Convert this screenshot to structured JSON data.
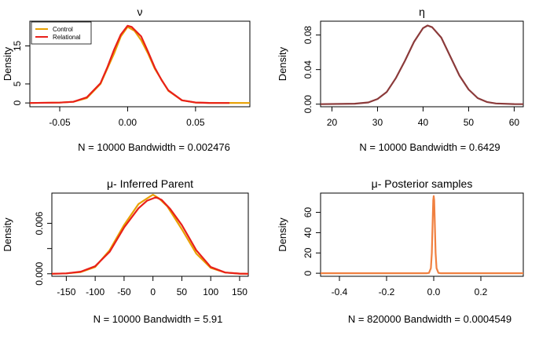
{
  "chart_data": [
    {
      "type": "line",
      "title": "ν",
      "xlabel": "N = 10000   Bandwidth = 0.002476",
      "ylabel": "Density",
      "xlim": [
        -0.072,
        0.09
      ],
      "ylim": [
        -1.0,
        21.5
      ],
      "x_ticks": [
        -0.05,
        0.0,
        0.05
      ],
      "x_tick_labels": [
        "-0.05",
        "0.00",
        "0.05"
      ],
      "y_ticks": [
        0,
        5,
        15
      ],
      "y_tick_labels": [
        "0",
        "5",
        "15"
      ],
      "legend": {
        "position": "top-left",
        "entries": [
          {
            "label": "Control",
            "color": "#e8a000"
          },
          {
            "label": "Relational",
            "color": "#e8201a"
          }
        ]
      },
      "series": [
        {
          "name": "Control",
          "color": "#e8a000",
          "points": [
            [
              -0.072,
              0
            ],
            [
              -0.05,
              0.1
            ],
            [
              -0.04,
              0.3
            ],
            [
              -0.03,
              1.3
            ],
            [
              -0.02,
              5.0
            ],
            [
              -0.015,
              9.0
            ],
            [
              -0.01,
              13.0
            ],
            [
              -0.005,
              17.5
            ],
            [
              0.0,
              20.0
            ],
            [
              0.005,
              19.0
            ],
            [
              0.01,
              16.5
            ],
            [
              0.015,
              13.0
            ],
            [
              0.02,
              9.0
            ],
            [
              0.03,
              3.2
            ],
            [
              0.04,
              0.7
            ],
            [
              0.05,
              0.1
            ],
            [
              0.06,
              0.02
            ],
            [
              0.09,
              0
            ]
          ]
        },
        {
          "name": "Relational",
          "color": "#e8201a",
          "points": [
            [
              -0.072,
              0
            ],
            [
              -0.05,
              0.1
            ],
            [
              -0.04,
              0.3
            ],
            [
              -0.03,
              1.5
            ],
            [
              -0.02,
              5.2
            ],
            [
              -0.015,
              9.3
            ],
            [
              -0.01,
              14.0
            ],
            [
              -0.005,
              18.0
            ],
            [
              0.0,
              20.3
            ],
            [
              0.003,
              20.0
            ],
            [
              0.01,
              17.5
            ],
            [
              0.015,
              13.5
            ],
            [
              0.02,
              9.3
            ],
            [
              0.025,
              6.0
            ],
            [
              0.03,
              3.3
            ],
            [
              0.04,
              0.7
            ],
            [
              0.05,
              0.12
            ],
            [
              0.06,
              0.02
            ],
            [
              0.075,
              0
            ]
          ]
        }
      ]
    },
    {
      "type": "line",
      "title": "η",
      "xlabel": "N = 10000   Bandwidth = 0.6429",
      "ylabel": "Density",
      "xlim": [
        17.5,
        62
      ],
      "ylim": [
        -0.003,
        0.096
      ],
      "x_ticks": [
        20,
        30,
        40,
        50,
        60
      ],
      "x_tick_labels": [
        "20",
        "30",
        "40",
        "50",
        "60"
      ],
      "y_ticks": [
        0.0,
        0.04,
        0.08
      ],
      "y_tick_labels": [
        "0.00",
        "0.04",
        "0.08"
      ],
      "series": [
        {
          "name": "",
          "color": "#8b3a3a",
          "points": [
            [
              17.5,
              0
            ],
            [
              25,
              0.0005
            ],
            [
              28,
              0.002
            ],
            [
              30,
              0.006
            ],
            [
              32,
              0.014
            ],
            [
              34,
              0.03
            ],
            [
              36,
              0.05
            ],
            [
              38,
              0.072
            ],
            [
              40,
              0.088
            ],
            [
              41,
              0.091
            ],
            [
              42,
              0.089
            ],
            [
              44,
              0.077
            ],
            [
              46,
              0.055
            ],
            [
              48,
              0.033
            ],
            [
              50,
              0.017
            ],
            [
              52,
              0.007
            ],
            [
              54,
              0.0025
            ],
            [
              56,
              0.0008
            ],
            [
              60,
              0.0001
            ],
            [
              62,
              0
            ]
          ]
        }
      ]
    },
    {
      "type": "line",
      "title": "μ- Inferred Parent",
      "xlabel": "N = 10000   Bandwidth = 5.91",
      "ylabel": "Density",
      "xlim": [
        -175,
        165
      ],
      "ylim": [
        -0.0003,
        0.0096
      ],
      "x_ticks": [
        -150,
        -100,
        -50,
        0,
        50,
        100,
        150
      ],
      "x_tick_labels": [
        "-150",
        "-100",
        "-50",
        "0",
        "50",
        "100",
        "150"
      ],
      "y_ticks": [
        0.0,
        0.003,
        0.006
      ],
      "y_tick_labels": [
        "0.000",
        "",
        "0.006"
      ],
      "series": [
        {
          "name": "Control",
          "color": "#e8a000",
          "points": [
            [
              -175,
              0
            ],
            [
              -150,
              5e-05
            ],
            [
              -125,
              0.0002
            ],
            [
              -100,
              0.0008
            ],
            [
              -75,
              0.0028
            ],
            [
              -50,
              0.0058
            ],
            [
              -25,
              0.0083
            ],
            [
              -5,
              0.0092
            ],
            [
              0,
              0.0094
            ],
            [
              10,
              0.009
            ],
            [
              25,
              0.008
            ],
            [
              50,
              0.0053
            ],
            [
              75,
              0.0024
            ],
            [
              100,
              0.0007
            ],
            [
              125,
              0.00015
            ],
            [
              150,
              2e-05
            ],
            [
              165,
              0
            ]
          ]
        },
        {
          "name": "Relational",
          "color": "#e8201a",
          "points": [
            [
              -175,
              0
            ],
            [
              -150,
              5e-05
            ],
            [
              -125,
              0.00025
            ],
            [
              -100,
              0.0009
            ],
            [
              -75,
              0.0026
            ],
            [
              -50,
              0.0055
            ],
            [
              -25,
              0.0078
            ],
            [
              -10,
              0.0087
            ],
            [
              5,
              0.0091
            ],
            [
              15,
              0.0088
            ],
            [
              30,
              0.0077
            ],
            [
              50,
              0.0058
            ],
            [
              75,
              0.0028
            ],
            [
              100,
              0.0008
            ],
            [
              125,
              0.00015
            ],
            [
              150,
              2e-05
            ],
            [
              165,
              0
            ]
          ]
        }
      ]
    },
    {
      "type": "line",
      "title": "μ- Posterior samples",
      "xlabel": "N = 820000   Bandwidth = 0.0004549",
      "ylabel": "Density",
      "xlim": [
        -0.48,
        0.38
      ],
      "ylim": [
        -3,
        79
      ],
      "x_ticks": [
        -0.4,
        -0.2,
        0.0,
        0.2
      ],
      "x_tick_labels": [
        "-0.4",
        "-0.2",
        "0.0",
        "0.2"
      ],
      "y_ticks": [
        0,
        20,
        40,
        60
      ],
      "y_tick_labels": [
        "0",
        "20",
        "40",
        "60"
      ],
      "series": [
        {
          "name": "",
          "color": "#f08040",
          "points": [
            [
              -0.48,
              0
            ],
            [
              -0.03,
              0
            ],
            [
              -0.02,
              0.3
            ],
            [
              -0.012,
              5
            ],
            [
              -0.008,
              20
            ],
            [
              -0.004,
              55
            ],
            [
              -0.002,
              72
            ],
            [
              0.0,
              76
            ],
            [
              0.002,
              72
            ],
            [
              0.004,
              55
            ],
            [
              0.008,
              20
            ],
            [
              0.012,
              5
            ],
            [
              0.02,
              0.3
            ],
            [
              0.03,
              0
            ],
            [
              0.38,
              0
            ]
          ]
        }
      ]
    }
  ]
}
